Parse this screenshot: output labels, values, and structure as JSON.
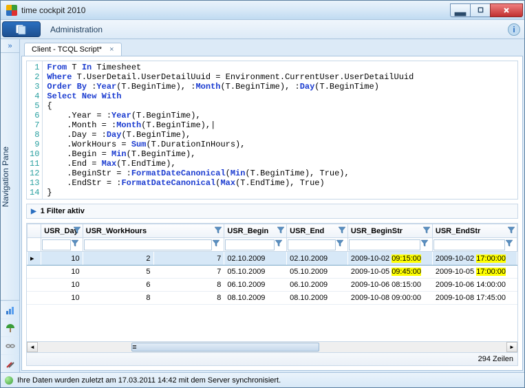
{
  "window": {
    "title": "time cockpit 2010"
  },
  "ribbon": {
    "section": "Administration"
  },
  "navpane": {
    "label": "Navigation Pane"
  },
  "tab": {
    "label": "Client - TCQL Script*"
  },
  "code": {
    "lines": [
      [
        [
          "kw",
          "From"
        ],
        [
          "",
          " T "
        ],
        [
          "kw",
          "In"
        ],
        [
          "",
          " Timesheet"
        ]
      ],
      [
        [
          "kw",
          "Where"
        ],
        [
          "",
          " T.UserDetail.UserDetailUuid = Environment.CurrentUser.UserDetailUuid"
        ]
      ],
      [
        [
          "kw",
          "Order By"
        ],
        [
          "",
          " :"
        ],
        [
          "fn",
          "Year"
        ],
        [
          "",
          "(T.BeginTime), :"
        ],
        [
          "fn",
          "Month"
        ],
        [
          "",
          "(T.BeginTime), :"
        ],
        [
          "fn",
          "Day"
        ],
        [
          "",
          "(T.BeginTime)"
        ]
      ],
      [
        [
          "kw",
          "Select New With"
        ]
      ],
      [
        [
          "",
          "{"
        ]
      ],
      [
        [
          "",
          "    .Year = :"
        ],
        [
          "fn",
          "Year"
        ],
        [
          "",
          "(T.BeginTime),"
        ]
      ],
      [
        [
          "",
          "    .Month = :"
        ],
        [
          "fn",
          "Month"
        ],
        [
          "",
          "(T.BeginTime),|"
        ]
      ],
      [
        [
          "",
          "    .Day = :"
        ],
        [
          "fn",
          "Day"
        ],
        [
          "",
          "(T.BeginTime),"
        ]
      ],
      [
        [
          "",
          "    .WorkHours = "
        ],
        [
          "fn",
          "Sum"
        ],
        [
          "",
          "(T.DurationInHours),"
        ]
      ],
      [
        [
          "",
          "    .Begin = "
        ],
        [
          "fn",
          "Min"
        ],
        [
          "",
          "(T.BeginTime),"
        ]
      ],
      [
        [
          "",
          "    .End = "
        ],
        [
          "fn",
          "Max"
        ],
        [
          "",
          "(T.EndTime),"
        ]
      ],
      [
        [
          "",
          "    .BeginStr = :"
        ],
        [
          "fn",
          "FormatDateCanonical"
        ],
        [
          "",
          "("
        ],
        [
          "fn",
          "Min"
        ],
        [
          "",
          "(T.BeginTime), True),"
        ]
      ],
      [
        [
          "",
          "    .EndStr = :"
        ],
        [
          "fn",
          "FormatDateCanonical"
        ],
        [
          "",
          "("
        ],
        [
          "fn",
          "Max"
        ],
        [
          "",
          "(T.EndTime), True)"
        ]
      ],
      [
        [
          "",
          "}"
        ]
      ]
    ]
  },
  "filter": {
    "label": "1 Filter aktiv"
  },
  "grid": {
    "columns": [
      "USR_Day",
      "USR_WorkHours",
      "USR_Begin",
      "USR_End",
      "USR_BeginStr",
      "USR_EndStr"
    ],
    "filter_values": [
      "",
      "",
      "",
      "",
      "",
      ""
    ],
    "rows": [
      {
        "selected": true,
        "day": "10",
        "wh": "2",
        "a": "7",
        "begin": "02.10.2009",
        "end": "02.10.2009",
        "bstr_pre": "2009-10-02 ",
        "bstr_hl": "09:15:00",
        "estr_pre": "2009-10-02 ",
        "estr_hl": "17:00:00",
        "hl": true
      },
      {
        "selected": false,
        "day": "10",
        "wh": "5",
        "a": "7",
        "begin": "05.10.2009",
        "end": "05.10.2009",
        "bstr_pre": "2009-10-05 ",
        "bstr_hl": "09:45:00",
        "estr_pre": "2009-10-05 ",
        "estr_hl": "17:00:00",
        "hl": true
      },
      {
        "selected": false,
        "day": "10",
        "wh": "6",
        "a": "8",
        "begin": "06.10.2009",
        "end": "06.10.2009",
        "bstr_pre": "2009-10-06 ",
        "bstr_hl": "08:15:00",
        "estr_pre": "2009-10-06 ",
        "estr_hl": "14:00:00",
        "hl": false
      },
      {
        "selected": false,
        "day": "10",
        "wh": "8",
        "a": "8",
        "begin": "08.10.2009",
        "end": "08.10.2009",
        "bstr_pre": "2009-10-08 ",
        "bstr_hl": "09:00:00",
        "estr_pre": "2009-10-08 ",
        "estr_hl": "17:45:00",
        "hl": false
      }
    ],
    "footer": "294 Zeilen"
  },
  "status": {
    "text": "Ihre Daten wurden zuletzt am 17.03.2011 14:42 mit dem Server synchronisiert."
  },
  "colors": {
    "highlight": "#ffff00",
    "keyword": "#1a3bd0",
    "gutter": "#2aa0a0",
    "selection": "#d7e8f7"
  }
}
